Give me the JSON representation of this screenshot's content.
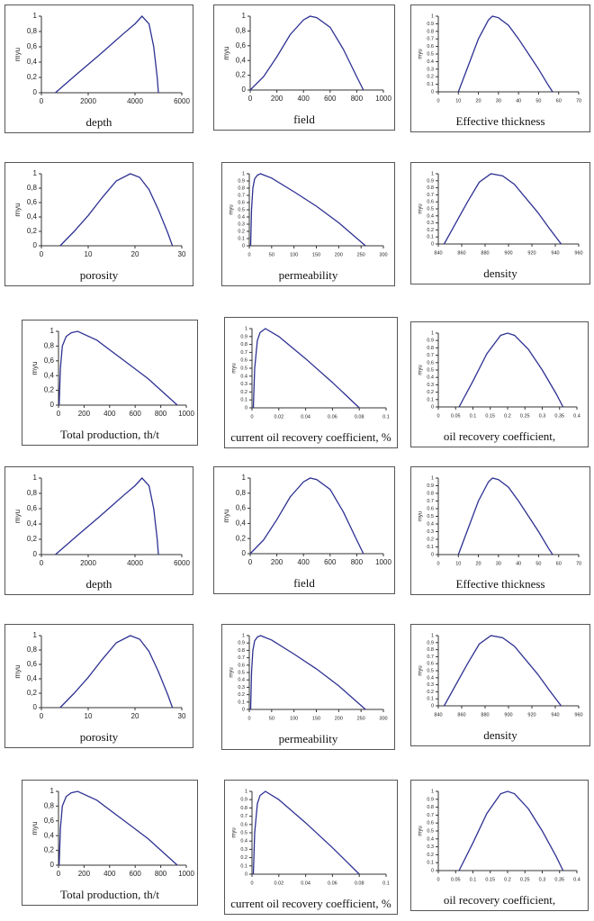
{
  "chart_data": [
    {
      "type": "line",
      "xlabel": "depth",
      "ylabel": "myu",
      "color": "#2e3192",
      "x": [
        600,
        1500,
        2500,
        3500,
        4000,
        4300,
        4600,
        4800,
        4950,
        5000
      ],
      "values": [
        0,
        0.24,
        0.5,
        0.77,
        0.9,
        1,
        0.9,
        0.6,
        0.2,
        0
      ],
      "xlim": [
        0,
        6000
      ],
      "xticks": [
        0,
        2000,
        4000,
        6000
      ],
      "ylim": [
        0,
        1
      ],
      "yticks": [
        0,
        {
          "value": 0.2,
          "label": "0,2"
        },
        {
          "value": 0.4,
          "label": "0,4"
        },
        {
          "value": 0.6,
          "label": "0,6"
        },
        {
          "value": 0.8,
          "label": "0,8"
        },
        1
      ]
    },
    {
      "type": "line",
      "xlabel": "field",
      "ylabel": "myu",
      "color": "#2e3192",
      "x": [
        0,
        100,
        200,
        300,
        400,
        450,
        500,
        600,
        700,
        800,
        850
      ],
      "values": [
        0,
        0.18,
        0.45,
        0.75,
        0.95,
        1,
        0.98,
        0.85,
        0.55,
        0.18,
        0
      ],
      "xlim": [
        0,
        1000
      ],
      "xticks": [
        0,
        200,
        400,
        600,
        800,
        1000
      ],
      "ylim": [
        0,
        1
      ],
      "yticks": [
        0,
        {
          "value": 0.2,
          "label": "0,2"
        },
        {
          "value": 0.4,
          "label": "0,4"
        },
        {
          "value": 0.6,
          "label": "0,6"
        },
        {
          "value": 0.8,
          "label": "0,8"
        },
        1
      ]
    },
    {
      "type": "line",
      "xlabel": "Effective thickness",
      "ylabel": "myu",
      "color": "#2e3192",
      "x": [
        10,
        15,
        20,
        25,
        27,
        30,
        35,
        40,
        45,
        50,
        55,
        57
      ],
      "values": [
        0,
        0.35,
        0.7,
        0.95,
        1,
        0.98,
        0.88,
        0.7,
        0.5,
        0.3,
        0.08,
        0
      ],
      "xlim": [
        0,
        70
      ],
      "xticks": [
        0,
        10,
        20,
        30,
        40,
        50,
        60,
        70
      ],
      "ylim": [
        0,
        1
      ],
      "yticks": [
        0,
        0.1,
        0.2,
        0.3,
        0.4,
        0.5,
        0.6,
        0.7,
        0.8,
        0.9,
        1
      ]
    },
    {
      "type": "line",
      "xlabel": "porosity",
      "ylabel": "myu",
      "color": "#2e3192",
      "x": [
        4,
        7,
        10,
        13,
        16,
        19,
        21,
        23,
        25,
        27,
        28
      ],
      "values": [
        0,
        0.2,
        0.42,
        0.67,
        0.9,
        1,
        0.95,
        0.78,
        0.5,
        0.18,
        0
      ],
      "xlim": [
        0,
        30
      ],
      "xticks": [
        0,
        10,
        20,
        30
      ],
      "ylim": [
        0,
        1
      ],
      "yticks": [
        0,
        {
          "value": 0.2,
          "label": "0,2"
        },
        {
          "value": 0.4,
          "label": "0,4"
        },
        {
          "value": 0.6,
          "label": "0,6"
        },
        {
          "value": 0.8,
          "label": "0,8"
        },
        1
      ]
    },
    {
      "type": "line",
      "xlabel": "permeability",
      "ylabel": "myu",
      "color": "#2e3192",
      "x": [
        3,
        5,
        8,
        12,
        18,
        25,
        50,
        100,
        150,
        200,
        260
      ],
      "values": [
        0,
        0.5,
        0.8,
        0.93,
        0.98,
        1,
        0.94,
        0.75,
        0.55,
        0.32,
        0
      ],
      "xlim": [
        0,
        300
      ],
      "xticks": [
        0,
        50,
        100,
        150,
        200,
        250,
        300
      ],
      "ylim": [
        0,
        1
      ],
      "yticks": [
        0,
        0.1,
        0.2,
        0.3,
        0.4,
        0.5,
        0.6,
        0.7,
        0.8,
        0.9,
        1
      ]
    },
    {
      "type": "line",
      "xlabel": "density",
      "ylabel": "myu",
      "color": "#2e3192",
      "x": [
        845,
        855,
        865,
        875,
        885,
        895,
        905,
        915,
        925,
        935,
        945
      ],
      "values": [
        0,
        0.3,
        0.6,
        0.88,
        1,
        0.97,
        0.85,
        0.65,
        0.45,
        0.22,
        0
      ],
      "xlim": [
        840,
        960
      ],
      "xticks": [
        840,
        860,
        880,
        900,
        920,
        940,
        960
      ],
      "ylim": [
        0,
        1
      ],
      "yticks": [
        0,
        0.1,
        0.2,
        0.3,
        0.4,
        0.5,
        0.6,
        0.7,
        0.8,
        0.9,
        1
      ]
    },
    {
      "type": "line",
      "xlabel": "Total production, th/t",
      "ylabel": "myu",
      "color": "#2e3192",
      "x": [
        5,
        15,
        30,
        60,
        100,
        150,
        300,
        500,
        700,
        930
      ],
      "values": [
        0,
        0.5,
        0.8,
        0.93,
        0.98,
        1,
        0.88,
        0.62,
        0.36,
        0
      ],
      "xlim": [
        0,
        1000
      ],
      "xticks": [
        0,
        200,
        400,
        600,
        800,
        1000
      ],
      "ylim": [
        0,
        1
      ],
      "yticks": [
        0,
        {
          "value": 0.2,
          "label": "0,2"
        },
        {
          "value": 0.4,
          "label": "0,4"
        },
        {
          "value": 0.6,
          "label": "0,6"
        },
        {
          "value": 0.8,
          "label": "0,8"
        },
        1
      ]
    },
    {
      "type": "line",
      "xlabel": "current oil recovery coefficient, %",
      "ylabel": "myu",
      "color": "#2e3192",
      "x": [
        0.001,
        0.002,
        0.004,
        0.006,
        0.01,
        0.02,
        0.04,
        0.06,
        0.08
      ],
      "values": [
        0,
        0.5,
        0.85,
        0.95,
        1,
        0.9,
        0.62,
        0.32,
        0
      ],
      "xlim": [
        0,
        0.1
      ],
      "xticks": [
        0,
        0.02,
        0.04,
        0.06,
        0.08,
        0.1
      ],
      "ylim": [
        0,
        1
      ],
      "yticks": [
        0,
        0.1,
        0.2,
        0.3,
        0.4,
        0.5,
        0.6,
        0.7,
        0.8,
        0.9,
        1
      ]
    },
    {
      "type": "line",
      "xlabel": "oil recovery coefficient,",
      "ylabel": "myu",
      "color": "#2e3192",
      "x": [
        0.06,
        0.1,
        0.14,
        0.18,
        0.2,
        0.22,
        0.26,
        0.3,
        0.34,
        0.36
      ],
      "values": [
        0,
        0.35,
        0.72,
        0.97,
        1,
        0.97,
        0.78,
        0.5,
        0.18,
        0
      ],
      "xlim": [
        0,
        0.4
      ],
      "xticks": [
        0,
        0.05,
        0.1,
        0.15,
        0.2,
        0.25,
        0.3,
        0.35,
        0.4
      ],
      "ylim": [
        0,
        1
      ],
      "yticks": [
        0,
        0.1,
        0.2,
        0.3,
        0.4,
        0.5,
        0.6,
        0.7,
        0.8,
        0.9,
        1
      ]
    },
    {
      "type": "line",
      "xlabel": "depth",
      "ylabel": "myu",
      "color": "#2e3192",
      "x": [
        600,
        1500,
        2500,
        3500,
        4000,
        4300,
        4600,
        4800,
        4950,
        5000
      ],
      "values": [
        0,
        0.24,
        0.5,
        0.77,
        0.9,
        1,
        0.9,
        0.6,
        0.2,
        0
      ],
      "xlim": [
        0,
        6000
      ],
      "xticks": [
        0,
        2000,
        4000,
        6000
      ],
      "ylim": [
        0,
        1
      ],
      "yticks": [
        0,
        {
          "value": 0.2,
          "label": "0,2"
        },
        {
          "value": 0.4,
          "label": "0,4"
        },
        {
          "value": 0.6,
          "label": "0,6"
        },
        {
          "value": 0.8,
          "label": "0,8"
        },
        1
      ]
    },
    {
      "type": "line",
      "xlabel": "field",
      "ylabel": "myu",
      "color": "#2e3192",
      "x": [
        0,
        100,
        200,
        300,
        400,
        450,
        500,
        600,
        700,
        800,
        850
      ],
      "values": [
        0,
        0.18,
        0.45,
        0.75,
        0.95,
        1,
        0.98,
        0.85,
        0.55,
        0.18,
        0
      ],
      "xlim": [
        0,
        1000
      ],
      "xticks": [
        0,
        200,
        400,
        600,
        800,
        1000
      ],
      "ylim": [
        0,
        1
      ],
      "yticks": [
        0,
        {
          "value": 0.2,
          "label": "0,2"
        },
        {
          "value": 0.4,
          "label": "0,4"
        },
        {
          "value": 0.6,
          "label": "0,6"
        },
        {
          "value": 0.8,
          "label": "0,8"
        },
        1
      ]
    },
    {
      "type": "line",
      "xlabel": "Effective thickness",
      "ylabel": "myu",
      "color": "#2e3192",
      "x": [
        10,
        15,
        20,
        25,
        27,
        30,
        35,
        40,
        45,
        50,
        55,
        57
      ],
      "values": [
        0,
        0.35,
        0.7,
        0.95,
        1,
        0.98,
        0.88,
        0.7,
        0.5,
        0.3,
        0.08,
        0
      ],
      "xlim": [
        0,
        70
      ],
      "xticks": [
        0,
        10,
        20,
        30,
        40,
        50,
        60,
        70
      ],
      "ylim": [
        0,
        1
      ],
      "yticks": [
        0,
        0.1,
        0.2,
        0.3,
        0.4,
        0.5,
        0.6,
        0.7,
        0.8,
        0.9,
        1
      ]
    },
    {
      "type": "line",
      "xlabel": "porosity",
      "ylabel": "myu",
      "color": "#2e3192",
      "x": [
        4,
        7,
        10,
        13,
        16,
        19,
        21,
        23,
        25,
        27,
        28
      ],
      "values": [
        0,
        0.2,
        0.42,
        0.67,
        0.9,
        1,
        0.95,
        0.78,
        0.5,
        0.18,
        0
      ],
      "xlim": [
        0,
        30
      ],
      "xticks": [
        0,
        10,
        20,
        30
      ],
      "ylim": [
        0,
        1
      ],
      "yticks": [
        0,
        {
          "value": 0.2,
          "label": "0,2"
        },
        {
          "value": 0.4,
          "label": "0,4"
        },
        {
          "value": 0.6,
          "label": "0,6"
        },
        {
          "value": 0.8,
          "label": "0,8"
        },
        1
      ]
    },
    {
      "type": "line",
      "xlabel": "permeability",
      "ylabel": "myu",
      "color": "#2e3192",
      "x": [
        3,
        5,
        8,
        12,
        18,
        25,
        50,
        100,
        150,
        200,
        260
      ],
      "values": [
        0,
        0.5,
        0.8,
        0.93,
        0.98,
        1,
        0.94,
        0.75,
        0.55,
        0.32,
        0
      ],
      "xlim": [
        0,
        300
      ],
      "xticks": [
        0,
        50,
        100,
        150,
        200,
        250,
        300
      ],
      "ylim": [
        0,
        1
      ],
      "yticks": [
        0,
        0.1,
        0.2,
        0.3,
        0.4,
        0.5,
        0.6,
        0.7,
        0.8,
        0.9,
        1
      ]
    },
    {
      "type": "line",
      "xlabel": "density",
      "ylabel": "myu",
      "color": "#2e3192",
      "x": [
        845,
        855,
        865,
        875,
        885,
        895,
        905,
        915,
        925,
        935,
        945
      ],
      "values": [
        0,
        0.3,
        0.6,
        0.88,
        1,
        0.97,
        0.85,
        0.65,
        0.45,
        0.22,
        0
      ],
      "xlim": [
        840,
        960
      ],
      "xticks": [
        840,
        860,
        880,
        900,
        920,
        940,
        960
      ],
      "ylim": [
        0,
        1
      ],
      "yticks": [
        0,
        0.1,
        0.2,
        0.3,
        0.4,
        0.5,
        0.6,
        0.7,
        0.8,
        0.9,
        1
      ]
    },
    {
      "type": "line",
      "xlabel": "Total production, th/t",
      "ylabel": "myu",
      "color": "#2e3192",
      "x": [
        5,
        15,
        30,
        60,
        100,
        150,
        300,
        500,
        700,
        930
      ],
      "values": [
        0,
        0.5,
        0.8,
        0.93,
        0.98,
        1,
        0.88,
        0.62,
        0.36,
        0
      ],
      "xlim": [
        0,
        1000
      ],
      "xticks": [
        0,
        200,
        400,
        600,
        800,
        1000
      ],
      "ylim": [
        0,
        1
      ],
      "yticks": [
        0,
        {
          "value": 0.2,
          "label": "0,2"
        },
        {
          "value": 0.4,
          "label": "0,4"
        },
        {
          "value": 0.6,
          "label": "0,6"
        },
        {
          "value": 0.8,
          "label": "0,8"
        },
        1
      ]
    },
    {
      "type": "line",
      "xlabel": "current oil recovery coefficient, %",
      "ylabel": "myu",
      "color": "#2e3192",
      "x": [
        0.001,
        0.002,
        0.004,
        0.006,
        0.01,
        0.02,
        0.04,
        0.06,
        0.08
      ],
      "values": [
        0,
        0.5,
        0.85,
        0.95,
        1,
        0.9,
        0.62,
        0.32,
        0
      ],
      "xlim": [
        0,
        0.1
      ],
      "xticks": [
        0,
        0.02,
        0.04,
        0.06,
        0.08,
        0.1
      ],
      "ylim": [
        0,
        1
      ],
      "yticks": [
        0,
        0.1,
        0.2,
        0.3,
        0.4,
        0.5,
        0.6,
        0.7,
        0.8,
        0.9,
        1
      ]
    },
    {
      "type": "line",
      "xlabel": "oil recovery coefficient,",
      "ylabel": "myu",
      "color": "#2e3192",
      "x": [
        0.06,
        0.1,
        0.14,
        0.18,
        0.2,
        0.22,
        0.26,
        0.3,
        0.34,
        0.36
      ],
      "values": [
        0,
        0.35,
        0.72,
        0.97,
        1,
        0.97,
        0.78,
        0.5,
        0.18,
        0
      ],
      "xlim": [
        0,
        0.4
      ],
      "xticks": [
        0,
        0.05,
        0.1,
        0.15,
        0.2,
        0.25,
        0.3,
        0.35,
        0.4
      ],
      "ylim": [
        0,
        1
      ],
      "yticks": [
        0,
        0.1,
        0.2,
        0.3,
        0.4,
        0.5,
        0.6,
        0.7,
        0.8,
        0.9,
        1
      ]
    }
  ]
}
